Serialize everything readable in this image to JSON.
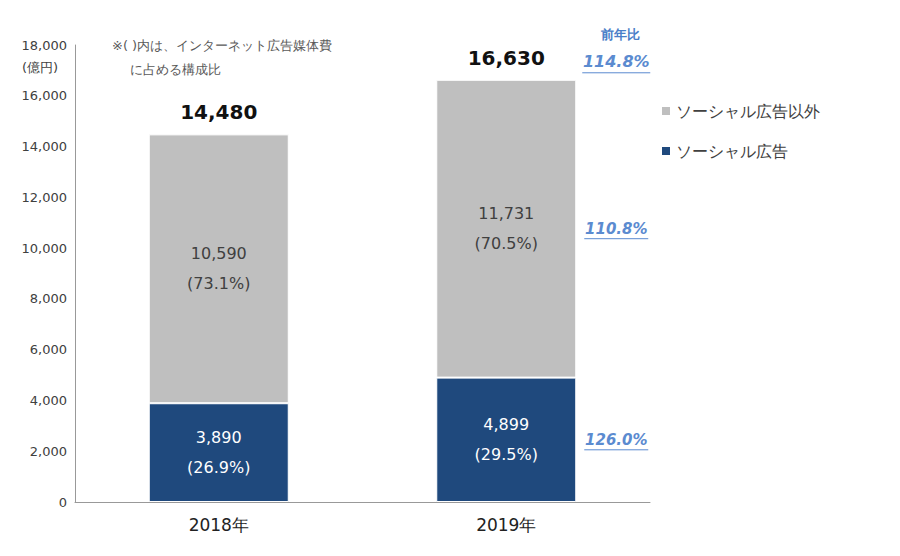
{
  "chart_data": {
    "type": "bar",
    "stacked": true,
    "data_labels": true,
    "grid": false,
    "legend": "right",
    "y_unit": "(億円)",
    "note": [
      "※( )内は、インターネット広告媒体費",
      "に占める構成比"
    ],
    "categories": [
      "2018年",
      "2019年"
    ],
    "ylim": [
      0,
      18000
    ],
    "yticks": [
      0,
      {
        "value": 2000,
        "label": "2,000"
      },
      {
        "value": 4000,
        "label": "4,000"
      },
      {
        "value": 6000,
        "label": "6,000"
      },
      {
        "value": 8000,
        "label": "8,000"
      },
      {
        "value": 10000,
        "label": "10,000"
      },
      {
        "value": 12000,
        "label": "12,000"
      },
      {
        "value": 14000,
        "label": "14,000"
      },
      {
        "value": 16000,
        "label": "16,000"
      },
      {
        "value": 18000,
        "label": "18,000"
      }
    ],
    "series": [
      {
        "name": "ソーシャル広告",
        "color": "#1F497D",
        "values": [
          3890,
          4899
        ],
        "value_labels": [
          "3,890",
          "4,899"
        ],
        "shares": [
          26.9,
          29.5
        ],
        "share_labels": [
          "(26.9%)",
          "(29.5%)"
        ],
        "yoy": 126.0,
        "yoy_label": "126.0%"
      },
      {
        "name": "ソーシャル広告以外",
        "color": "#BFBFBF",
        "values": [
          10590,
          11731
        ],
        "value_labels": [
          "10,590",
          "11,731"
        ],
        "shares": [
          73.1,
          70.5
        ],
        "share_labels": [
          "(73.1%)",
          "(70.5%)"
        ],
        "yoy": 110.8,
        "yoy_label": "110.8%"
      }
    ],
    "totals": [
      14480,
      16630
    ],
    "total_labels": [
      "14,480",
      "16,630"
    ],
    "yoy_title": "前年比",
    "total_yoy": 114.8,
    "total_yoy_label": "114.8%"
  }
}
